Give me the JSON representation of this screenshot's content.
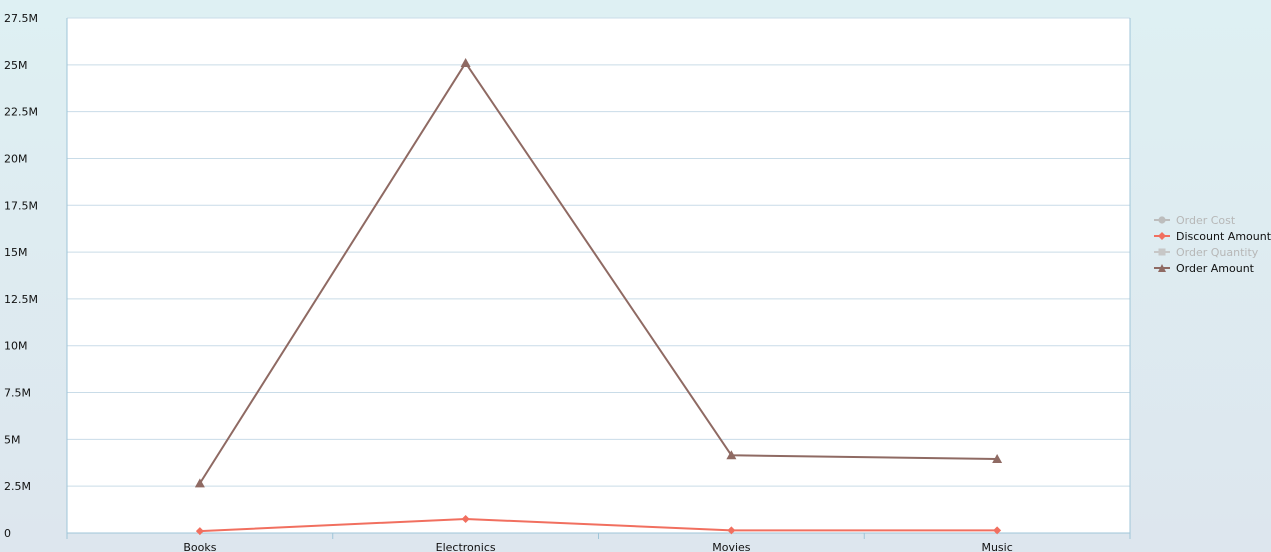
{
  "chart_data": {
    "type": "line",
    "categories": [
      "Books",
      "Electronics",
      "Movies",
      "Music"
    ],
    "series": [
      {
        "name": "Order Cost",
        "values": null,
        "visible": false,
        "color": "#bdbdbd",
        "marker": "circle",
        "marker_icon": "circle-marker-icon"
      },
      {
        "name": "Discount Amount",
        "values": [
          100000,
          750000,
          140000,
          140000
        ],
        "visible": true,
        "color": "#f16f5f",
        "marker": "diamond",
        "marker_icon": "diamond-marker-icon"
      },
      {
        "name": "Order Quantity",
        "values": null,
        "visible": false,
        "color": "#c7c7c7",
        "marker": "square",
        "marker_icon": "square-marker-icon"
      },
      {
        "name": "Order Amount",
        "values": [
          2650000,
          25100000,
          4150000,
          3950000
        ],
        "visible": true,
        "color": "#8f6a63",
        "marker": "triangle",
        "marker_icon": "triangle-marker-icon"
      }
    ],
    "y_ticks": [
      "0",
      "2.5M",
      "5M",
      "7.5M",
      "10M",
      "12.5M",
      "15M",
      "17.5M",
      "20M",
      "22.5M",
      "25M",
      "27.5M"
    ],
    "ylim": [
      0,
      27500000
    ],
    "grid": true,
    "legend_position": "right"
  }
}
